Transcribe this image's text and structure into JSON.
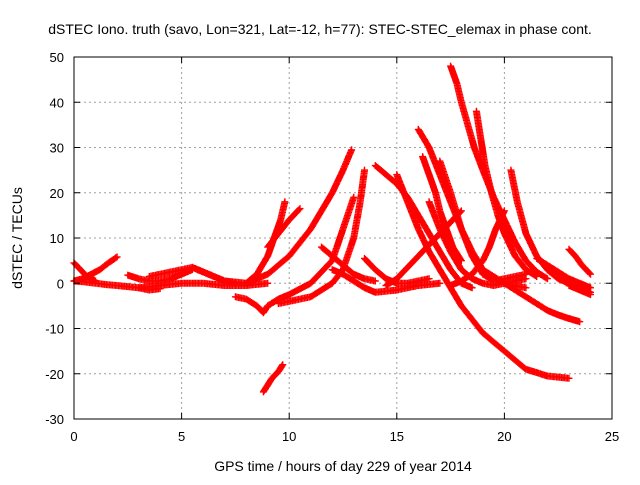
{
  "chart_data": {
    "type": "scatter",
    "title": "dSTEC Iono. truth (savo, Lon=321, Lat=-12, h=77): STEC-STEC_elemax in phase cont.",
    "xlabel": "GPS time / hours of day 229 of year 2014",
    "ylabel": "dSTEC  / TECUs",
    "xlim": [
      0,
      25
    ],
    "ylim": [
      -30,
      50
    ],
    "x_ticks": [
      0,
      5,
      10,
      15,
      20,
      25
    ],
    "y_ticks": [
      -30,
      -20,
      -10,
      0,
      10,
      20,
      30,
      40,
      50
    ],
    "grid": true,
    "legend": "none",
    "marker": "plus",
    "color": "#ff0000",
    "series": [
      {
        "x": [
          0.0,
          0.5,
          1.0,
          1.5,
          2.0,
          3.0,
          3.5,
          4.0
        ],
        "y": [
          0.5,
          0.3,
          0.0,
          -0.3,
          -0.5,
          -1.0,
          -1.5,
          -1.2
        ]
      },
      {
        "x": [
          0.0,
          0.4,
          0.8,
          1.2,
          1.6,
          2.0
        ],
        "y": [
          0.5,
          1.0,
          2.0,
          3.0,
          4.5,
          5.8
        ]
      },
      {
        "x": [
          0.0,
          0.3,
          0.6,
          1.0
        ],
        "y": [
          4.5,
          3.0,
          1.5,
          0.5
        ]
      },
      {
        "x": [
          2.5,
          3.0,
          3.5,
          4.0,
          4.5,
          5.0,
          5.5
        ],
        "y": [
          1.8,
          1.0,
          0.5,
          0.5,
          1.0,
          2.0,
          3.0
        ]
      },
      {
        "x": [
          3.5,
          4.0,
          4.5,
          5.0,
          5.5,
          6.0,
          6.5,
          7.0,
          8.0
        ],
        "y": [
          1.5,
          2.0,
          2.5,
          3.0,
          3.5,
          2.5,
          1.5,
          0.5,
          0.0
        ]
      },
      {
        "x": [
          5.5,
          6.0,
          6.5,
          7.0,
          7.5
        ],
        "y": [
          3.5,
          2.5,
          1.5,
          0.5,
          0.0
        ]
      },
      {
        "x": [
          3.0,
          4.0,
          5.0,
          6.0,
          7.0,
          8.0,
          9.0
        ],
        "y": [
          -1.0,
          -0.5,
          0.0,
          0.0,
          -0.5,
          -0.5,
          0.0
        ]
      },
      {
        "x": [
          8.0,
          8.5,
          9.0,
          9.3,
          9.6,
          9.8
        ],
        "y": [
          0.0,
          2.0,
          6.0,
          10.0,
          14.0,
          18.0
        ]
      },
      {
        "x": [
          8.0,
          9.0,
          10.0,
          11.0,
          12.0,
          12.5,
          12.9
        ],
        "y": [
          0.0,
          2.0,
          6.0,
          12.0,
          20.0,
          25.0,
          29.5
        ]
      },
      {
        "x": [
          9.0,
          9.5,
          10.0,
          10.5
        ],
        "y": [
          8.0,
          11.0,
          14.0,
          16.5
        ]
      },
      {
        "x": [
          7.5,
          8.0,
          8.5,
          8.8,
          9.0,
          9.5,
          10.0,
          11.0,
          12.0,
          12.5,
          13.0
        ],
        "y": [
          -3.0,
          -3.5,
          -5.0,
          -6.5,
          -5.0,
          -3.5,
          -2.5,
          0.0,
          5.0,
          12.0,
          19.0
        ]
      },
      {
        "x": [
          9.5,
          10.0,
          11.0,
          12.0,
          12.5,
          13.0,
          13.3,
          13.5
        ],
        "y": [
          -4.5,
          -4.0,
          -3.0,
          0.0,
          3.0,
          10.0,
          18.0,
          25.0
        ]
      },
      {
        "x": [
          8.8,
          9.0,
          9.2,
          9.5,
          9.7
        ],
        "y": [
          -24.0,
          -22.5,
          -21.0,
          -19.5,
          -18.0
        ]
      },
      {
        "x": [
          11.5,
          12.0,
          12.5,
          13.0,
          13.5,
          14.0
        ],
        "y": [
          8.0,
          6.0,
          4.0,
          2.0,
          1.0,
          0.5
        ]
      },
      {
        "x": [
          12.0,
          12.5,
          13.0,
          13.5,
          14.0,
          15.0,
          16.0,
          17.0
        ],
        "y": [
          3.0,
          2.0,
          0.5,
          -1.0,
          -2.0,
          -1.5,
          -0.5,
          0.0
        ]
      },
      {
        "x": [
          13.5,
          14.0,
          14.5,
          15.0,
          15.5,
          16.0,
          16.5
        ],
        "y": [
          5.5,
          3.0,
          1.0,
          0.0,
          0.0,
          0.5,
          1.0
        ]
      },
      {
        "x": [
          14.0,
          14.5,
          15.0,
          15.5,
          16.0,
          16.5,
          17.0,
          17.5,
          18.0,
          18.5
        ],
        "y": [
          26.0,
          24.0,
          22.0,
          19.0,
          15.0,
          11.0,
          7.0,
          3.0,
          0.0,
          -1.0
        ]
      },
      {
        "x": [
          14.5,
          15.0,
          15.5,
          16.0,
          16.5,
          17.0,
          17.5,
          18.0
        ],
        "y": [
          -0.5,
          1.0,
          3.5,
          6.0,
          8.5,
          11.0,
          13.5,
          16.0
        ]
      },
      {
        "x": [
          15.0,
          15.5,
          16.0,
          16.5,
          17.0,
          17.5,
          18.0,
          18.5,
          19.0,
          19.5,
          20.0,
          21.0,
          22.0,
          23.0
        ],
        "y": [
          24.0,
          18.0,
          12.0,
          7.0,
          3.0,
          -1.0,
          -5.0,
          -8.0,
          -11.0,
          -13.0,
          -15.0,
          -19.0,
          -20.5,
          -21.0
        ]
      },
      {
        "x": [
          16.0,
          16.5,
          17.0,
          17.5,
          18.0,
          18.5,
          19.0,
          20.0,
          21.0
        ],
        "y": [
          34.0,
          30.0,
          24.0,
          18.0,
          12.0,
          7.0,
          3.0,
          0.0,
          -1.0
        ]
      },
      {
        "x": [
          16.2,
          16.5,
          16.8,
          17.0,
          17.3,
          17.6,
          18.0
        ],
        "y": [
          28.0,
          24.0,
          20.0,
          16.0,
          12.0,
          8.0,
          5.0
        ]
      },
      {
        "x": [
          16.5,
          17.0,
          17.5,
          18.0,
          18.5,
          19.0,
          19.5,
          20.0,
          20.5,
          21.0
        ],
        "y": [
          18.0,
          12.0,
          7.0,
          3.0,
          1.0,
          0.0,
          -0.5,
          0.0,
          0.5,
          1.0
        ]
      },
      {
        "x": [
          17.0,
          17.5,
          18.0,
          18.5,
          19.0,
          19.5,
          20.0,
          20.5,
          21.0
        ],
        "y": [
          27.0,
          20.0,
          12.0,
          6.0,
          2.0,
          0.5,
          1.0,
          1.5,
          2.0
        ]
      },
      {
        "x": [
          17.5,
          17.8,
          18.0,
          18.3,
          18.6,
          19.0,
          19.5,
          20.0,
          20.5,
          21.0,
          21.5,
          22.0
        ],
        "y": [
          48.0,
          44.0,
          40.0,
          35.0,
          30.0,
          25.0,
          19.0,
          14.0,
          9.0,
          5.0,
          2.5,
          1.0
        ]
      },
      {
        "x": [
          18.7,
          18.9,
          19.1,
          19.4,
          19.7,
          20.0,
          20.5,
          21.0,
          21.5
        ],
        "y": [
          38.0,
          32.0,
          26.0,
          20.0,
          15.0,
          11.0,
          6.0,
          3.0,
          1.5
        ]
      },
      {
        "x": [
          17.5,
          18.0,
          18.5,
          19.0,
          19.3,
          19.6,
          20.0
        ],
        "y": [
          -0.5,
          0.5,
          2.0,
          5.0,
          8.0,
          12.0,
          16.0
        ]
      },
      {
        "x": [
          20.3,
          20.6,
          21.0,
          21.5,
          22.0,
          22.5,
          23.0,
          23.5,
          24.0
        ],
        "y": [
          25.0,
          18.0,
          11.0,
          6.0,
          3.0,
          1.0,
          0.0,
          -0.5,
          -1.0
        ]
      },
      {
        "x": [
          20.0,
          20.5,
          21.0,
          21.5,
          22.0,
          22.5,
          23.0,
          23.5
        ],
        "y": [
          0.0,
          -1.5,
          -3.0,
          -4.5,
          -6.0,
          -7.0,
          -7.8,
          -8.5
        ]
      },
      {
        "x": [
          21.5,
          22.0,
          22.5,
          23.0,
          23.5,
          24.0
        ],
        "y": [
          5.5,
          4.0,
          2.5,
          1.0,
          0.0,
          -1.0
        ]
      },
      {
        "x": [
          22.0,
          22.5,
          23.0,
          23.5,
          24.0
        ],
        "y": [
          3.0,
          1.5,
          0.0,
          -1.0,
          -2.0
        ]
      },
      {
        "x": [
          23.0,
          23.3,
          23.6,
          24.0
        ],
        "y": [
          7.5,
          6.0,
          4.0,
          2.0
        ]
      },
      {
        "x": [
          23.0,
          23.5,
          24.0
        ],
        "y": [
          -0.5,
          -1.5,
          -2.5
        ]
      }
    ]
  }
}
